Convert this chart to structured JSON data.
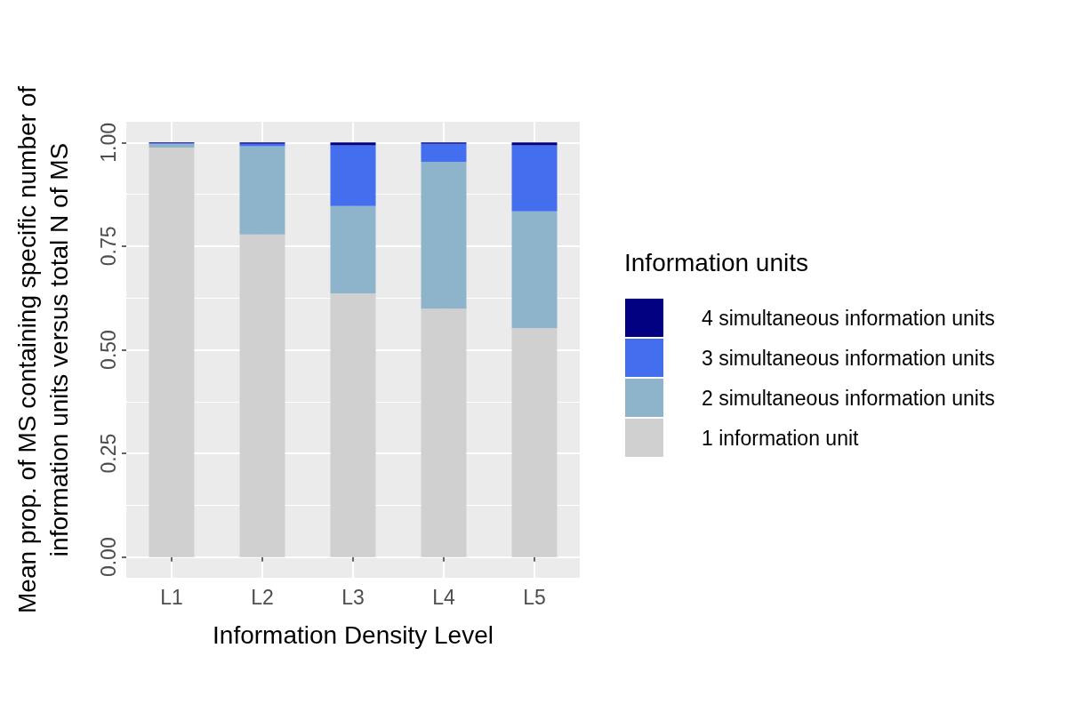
{
  "chart_data": {
    "type": "bar",
    "stacked": true,
    "xlabel": "Information Density Level",
    "ylabel": "Mean prop. of MS containing specific number of\ninformation units versus total N of MS",
    "legend_title": "Information units",
    "categories": [
      "L1",
      "L2",
      "L3",
      "L4",
      "L5"
    ],
    "series": [
      {
        "name": "1 information unit",
        "color": "#d0d0d0",
        "values": [
          0.988,
          0.778,
          0.636,
          0.599,
          0.552
        ]
      },
      {
        "name": "2 simultaneous information units",
        "color": "#8db4cb",
        "values": [
          0.009,
          0.213,
          0.211,
          0.354,
          0.282
        ]
      },
      {
        "name": "3 simultaneous information units",
        "color": "#436eee",
        "values": [
          0.001,
          0.006,
          0.146,
          0.044,
          0.159
        ]
      },
      {
        "name": "4 simultaneous information units",
        "color": "#000080",
        "values": [
          0.002,
          0.003,
          0.007,
          0.003,
          0.007
        ]
      }
    ],
    "ylim": [
      -0.05,
      1.05
    ],
    "yticks": [
      {
        "value": 0,
        "label": "0.00"
      },
      {
        "value": 0.25,
        "label": "0.25"
      },
      {
        "value": 0.5,
        "label": "0.50"
      },
      {
        "value": 0.75,
        "label": "0.75"
      },
      {
        "value": 1,
        "label": "1.00"
      }
    ],
    "grid": true,
    "legend": "right"
  }
}
